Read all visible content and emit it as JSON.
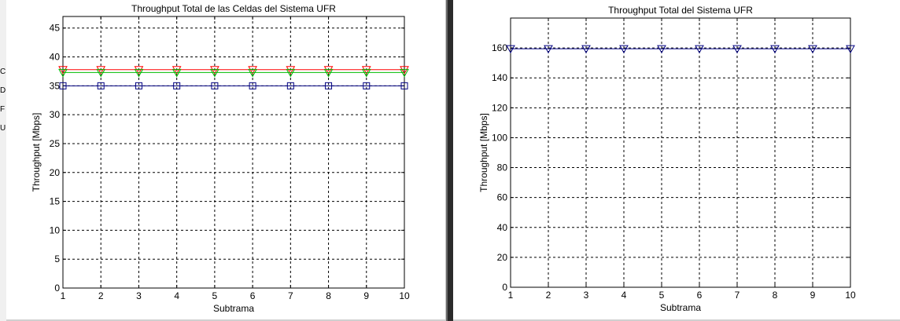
{
  "left_window_fragments": [
    "C",
    "D",
    "F",
    "U"
  ],
  "chart_data": [
    {
      "type": "line",
      "title": "Throughput Total de las Celdas del Sistema UFR",
      "xlabel": "Subtrama",
      "ylabel": "Throughput [Mbps]",
      "xlim": [
        1,
        10
      ],
      "ylim": [
        0,
        47
      ],
      "x_ticks": [
        1,
        2,
        3,
        4,
        5,
        6,
        7,
        8,
        9,
        10
      ],
      "y_ticks": [
        0,
        5,
        10,
        15,
        20,
        25,
        30,
        35,
        40,
        45
      ],
      "grid": true,
      "legend": "none",
      "x": [
        1,
        2,
        3,
        4,
        5,
        6,
        7,
        8,
        9,
        10
      ],
      "series": [
        {
          "color": "#ff0000",
          "marker": "triangle-down",
          "values": [
            37.8,
            37.8,
            37.8,
            37.8,
            37.8,
            37.8,
            37.8,
            37.8,
            37.8,
            37.8
          ]
        },
        {
          "color": "#00bb00",
          "marker": "triangle-down",
          "values": [
            37.3,
            37.3,
            37.3,
            37.3,
            37.3,
            37.3,
            37.3,
            37.3,
            37.3,
            37.3
          ]
        },
        {
          "color": "#000080",
          "marker": "square",
          "values": [
            35.0,
            35.0,
            35.0,
            35.0,
            35.0,
            35.0,
            35.0,
            35.0,
            35.0,
            35.0
          ]
        }
      ]
    },
    {
      "type": "line",
      "title": "Throughput Total del Sistema UFR",
      "xlabel": "Subtrama",
      "ylabel": "Throughput [Mbps]",
      "xlim": [
        1,
        10
      ],
      "ylim": [
        0,
        180
      ],
      "x_ticks": [
        1,
        2,
        3,
        4,
        5,
        6,
        7,
        8,
        9,
        10
      ],
      "y_ticks": [
        0,
        20,
        40,
        60,
        80,
        100,
        120,
        140,
        160
      ],
      "grid": true,
      "legend": "none",
      "x": [
        1,
        2,
        3,
        4,
        5,
        6,
        7,
        8,
        9,
        10
      ],
      "series": [
        {
          "color": "#000080",
          "marker": "triangle-down",
          "values": [
            159.5,
            159.5,
            159.5,
            159.5,
            159.5,
            159.5,
            159.5,
            159.5,
            159.5,
            159.5
          ]
        }
      ]
    }
  ]
}
